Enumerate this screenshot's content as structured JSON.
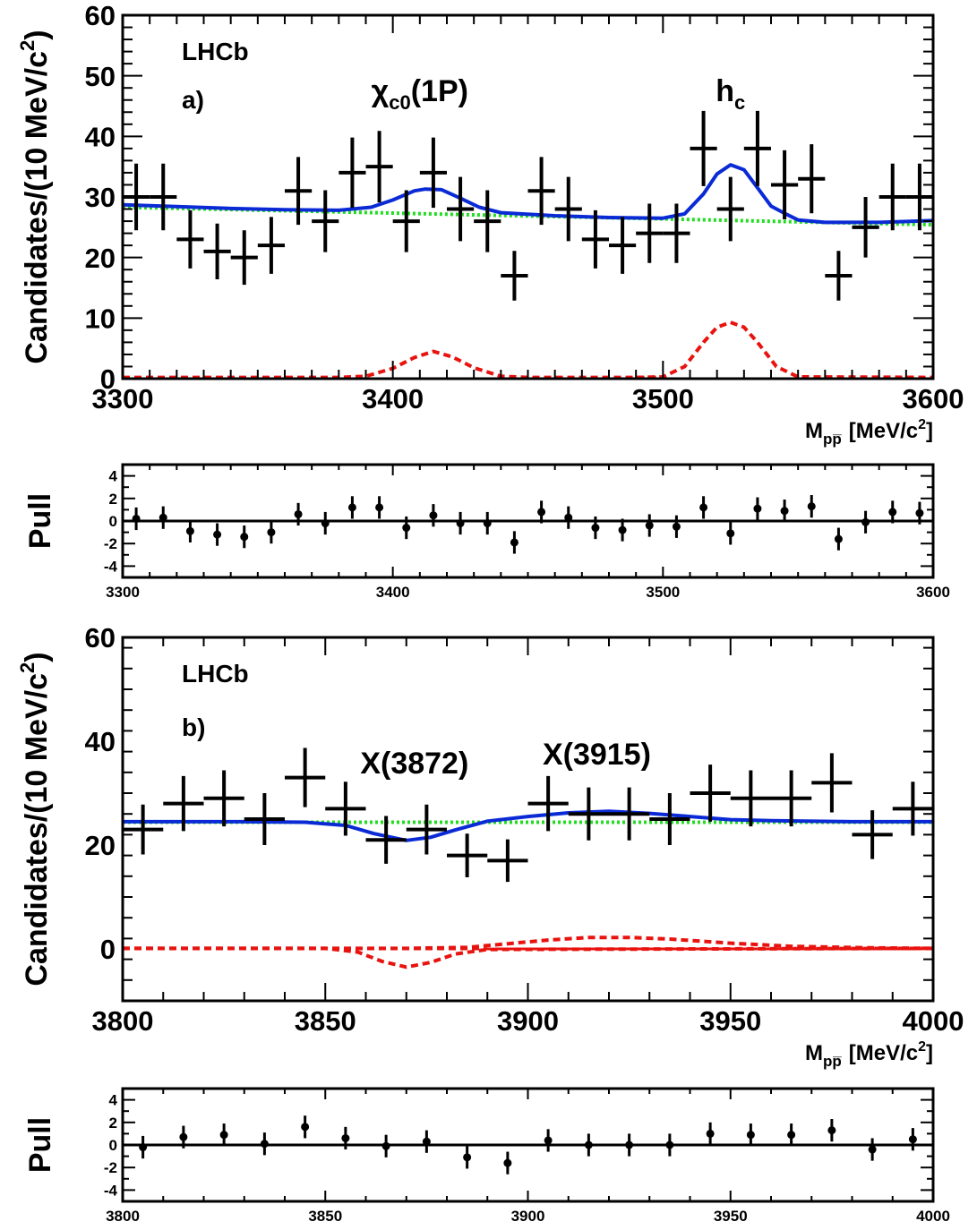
{
  "chart_data": [
    {
      "id": "a",
      "type": "scatter",
      "title": "",
      "experiment_label": "LHCb",
      "panel_label": "a)",
      "peak_labels": [
        {
          "text": "χ",
          "sub": "c0",
          "suffix": "(1P)",
          "x": 3410
        },
        {
          "text": "h",
          "sub": "c",
          "suffix": "",
          "x": 3525
        }
      ],
      "xlabel": "M",
      "xlabel_sub": "pp̅",
      "xlabel_unit": "[MeV/c",
      "xlabel_sup": "2",
      "xlabel_close": "]",
      "ylabel": "Candidates/(10 MeV/c",
      "ylabel_sup": "2",
      "ylabel_close": ")",
      "xlim": [
        3300,
        3600
      ],
      "ylim": [
        0,
        60
      ],
      "xticks": [
        3300,
        3400,
        3500,
        3600
      ],
      "yticks": [
        0,
        10,
        20,
        30,
        40,
        50,
        60
      ],
      "bin_half_width": 5,
      "points": [
        {
          "x": 3305,
          "y": 30,
          "err": 5.5
        },
        {
          "x": 3315,
          "y": 30,
          "err": 5.5
        },
        {
          "x": 3325,
          "y": 23,
          "err": 4.8
        },
        {
          "x": 3335,
          "y": 21,
          "err": 4.6
        },
        {
          "x": 3345,
          "y": 20,
          "err": 4.5
        },
        {
          "x": 3355,
          "y": 22,
          "err": 4.7
        },
        {
          "x": 3365,
          "y": 31,
          "err": 5.6
        },
        {
          "x": 3375,
          "y": 26,
          "err": 5.1
        },
        {
          "x": 3385,
          "y": 34,
          "err": 5.8
        },
        {
          "x": 3395,
          "y": 35,
          "err": 5.9
        },
        {
          "x": 3405,
          "y": 26,
          "err": 5.1
        },
        {
          "x": 3415,
          "y": 34,
          "err": 5.8
        },
        {
          "x": 3425,
          "y": 28,
          "err": 5.3
        },
        {
          "x": 3435,
          "y": 26,
          "err": 5.1
        },
        {
          "x": 3445,
          "y": 17,
          "err": 4.1
        },
        {
          "x": 3455,
          "y": 31,
          "err": 5.6
        },
        {
          "x": 3465,
          "y": 28,
          "err": 5.3
        },
        {
          "x": 3475,
          "y": 23,
          "err": 4.8
        },
        {
          "x": 3485,
          "y": 22,
          "err": 4.7
        },
        {
          "x": 3495,
          "y": 24,
          "err": 4.9
        },
        {
          "x": 3505,
          "y": 24,
          "err": 4.9
        },
        {
          "x": 3515,
          "y": 38,
          "err": 6.2
        },
        {
          "x": 3525,
          "y": 28,
          "err": 5.3
        },
        {
          "x": 3535,
          "y": 38,
          "err": 6.2
        },
        {
          "x": 3545,
          "y": 32,
          "err": 5.7
        },
        {
          "x": 3555,
          "y": 33,
          "err": 5.7
        },
        {
          "x": 3565,
          "y": 17,
          "err": 4.1
        },
        {
          "x": 3575,
          "y": 25,
          "err": 5.0
        },
        {
          "x": 3585,
          "y": 30,
          "err": 5.5
        },
        {
          "x": 3595,
          "y": 30,
          "err": 5.5
        }
      ],
      "total_fit": [
        [
          3300,
          28.7
        ],
        [
          3320,
          28.4
        ],
        [
          3340,
          28.1
        ],
        [
          3360,
          27.9
        ],
        [
          3380,
          27.8
        ],
        [
          3392,
          28.3
        ],
        [
          3400,
          29.5
        ],
        [
          3408,
          31.0
        ],
        [
          3412,
          31.3
        ],
        [
          3418,
          31.2
        ],
        [
          3425,
          29.8
        ],
        [
          3432,
          28.3
        ],
        [
          3440,
          27.4
        ],
        [
          3460,
          26.9
        ],
        [
          3480,
          26.6
        ],
        [
          3500,
          26.5
        ],
        [
          3508,
          27.2
        ],
        [
          3515,
          30.5
        ],
        [
          3520,
          33.8
        ],
        [
          3525,
          35.3
        ],
        [
          3530,
          34.5
        ],
        [
          3535,
          31.5
        ],
        [
          3540,
          28.5
        ],
        [
          3545,
          27.3
        ],
        [
          3550,
          26.2
        ],
        [
          3560,
          25.8
        ],
        [
          3580,
          25.8
        ],
        [
          3600,
          26.1
        ]
      ],
      "background_fit": [
        [
          3300,
          28.3
        ],
        [
          3600,
          25.4
        ]
      ],
      "signal_curves": [
        [
          [
            3300,
            0.2
          ],
          [
            3380,
            0.2
          ],
          [
            3390,
            0.4
          ],
          [
            3400,
            1.7
          ],
          [
            3408,
            3.5
          ],
          [
            3415,
            4.5
          ],
          [
            3422,
            3.6
          ],
          [
            3430,
            1.8
          ],
          [
            3440,
            0.4
          ],
          [
            3450,
            0.2
          ],
          [
            3500,
            0.2
          ]
        ],
        [
          [
            3490,
            0.2
          ],
          [
            3500,
            0.3
          ],
          [
            3508,
            2.0
          ],
          [
            3515,
            6.0
          ],
          [
            3520,
            8.5
          ],
          [
            3525,
            9.3
          ],
          [
            3530,
            8.5
          ],
          [
            3535,
            6.0
          ],
          [
            3542,
            2.0
          ],
          [
            3550,
            0.3
          ],
          [
            3600,
            0.2
          ]
        ]
      ],
      "pull": {
        "ylabel": "Pull",
        "ylim": [
          -5,
          5
        ],
        "yticks": [
          -4,
          -2,
          0,
          2,
          4
        ],
        "values": [
          0.2,
          0.3,
          -0.9,
          -1.2,
          -1.4,
          -1.0,
          0.6,
          -0.2,
          1.2,
          1.2,
          -0.6,
          0.5,
          -0.2,
          -0.2,
          -1.9,
          0.8,
          0.3,
          -0.6,
          -0.8,
          -0.4,
          -0.5,
          1.2,
          -1.1,
          1.1,
          0.9,
          1.3,
          -1.6,
          -0.1,
          0.8,
          0.7
        ]
      }
    },
    {
      "id": "b",
      "type": "scatter",
      "title": "",
      "experiment_label": "LHCb",
      "panel_label": "b)",
      "peak_labels": [
        {
          "text": "X(3872)",
          "sub": "",
          "suffix": "",
          "x": 3872
        },
        {
          "text": "X(3915)",
          "sub": "",
          "suffix": "",
          "x": 3917
        }
      ],
      "xlabel": "M",
      "xlabel_sub": "pp̅",
      "xlabel_unit": "[MeV/c",
      "xlabel_sup": "2",
      "xlabel_close": "]",
      "ylabel": "Candidates/(10 MeV/c",
      "ylabel_sup": "2",
      "ylabel_close": ")",
      "xlim": [
        3800,
        4000
      ],
      "ylim": [
        -10,
        60
      ],
      "xticks": [
        3800,
        3850,
        3900,
        3950,
        4000
      ],
      "yticks": [
        0,
        20,
        40,
        60
      ],
      "bin_half_width": 5,
      "points": [
        {
          "x": 3805,
          "y": 23,
          "err": 4.8
        },
        {
          "x": 3815,
          "y": 28,
          "err": 5.3
        },
        {
          "x": 3825,
          "y": 29,
          "err": 5.4
        },
        {
          "x": 3835,
          "y": 25,
          "err": 5.0
        },
        {
          "x": 3845,
          "y": 33,
          "err": 5.7
        },
        {
          "x": 3855,
          "y": 27,
          "err": 5.2
        },
        {
          "x": 3865,
          "y": 21,
          "err": 4.6
        },
        {
          "x": 3875,
          "y": 23,
          "err": 4.8
        },
        {
          "x": 3885,
          "y": 18,
          "err": 4.2
        },
        {
          "x": 3895,
          "y": 17,
          "err": 4.1
        },
        {
          "x": 3905,
          "y": 28,
          "err": 5.3
        },
        {
          "x": 3915,
          "y": 26,
          "err": 5.1
        },
        {
          "x": 3925,
          "y": 26,
          "err": 5.1
        },
        {
          "x": 3935,
          "y": 25,
          "err": 5.0
        },
        {
          "x": 3945,
          "y": 30,
          "err": 5.5
        },
        {
          "x": 3955,
          "y": 29,
          "err": 5.4
        },
        {
          "x": 3965,
          "y": 29,
          "err": 5.4
        },
        {
          "x": 3975,
          "y": 32,
          "err": 5.7
        },
        {
          "x": 3985,
          "y": 22,
          "err": 4.7
        },
        {
          "x": 3995,
          "y": 27,
          "err": 5.2
        }
      ],
      "total_fit": [
        [
          3800,
          24.5
        ],
        [
          3830,
          24.5
        ],
        [
          3845,
          24.4
        ],
        [
          3855,
          23.8
        ],
        [
          3862,
          22.2
        ],
        [
          3870,
          20.9
        ],
        [
          3876,
          21.5
        ],
        [
          3882,
          22.9
        ],
        [
          3890,
          24.6
        ],
        [
          3900,
          25.5
        ],
        [
          3910,
          26.2
        ],
        [
          3920,
          26.5
        ],
        [
          3930,
          26.1
        ],
        [
          3940,
          25.5
        ],
        [
          3950,
          24.9
        ],
        [
          3960,
          24.7
        ],
        [
          3980,
          24.5
        ],
        [
          4000,
          24.5
        ]
      ],
      "background_fit": [
        [
          3800,
          24.4
        ],
        [
          4000,
          24.4
        ]
      ],
      "signal_curves": [
        [
          [
            3800,
            0.1
          ],
          [
            3850,
            0.1
          ],
          [
            3858,
            -0.6
          ],
          [
            3864,
            -2.4
          ],
          [
            3870,
            -3.5
          ],
          [
            3876,
            -2.6
          ],
          [
            3882,
            -1.0
          ],
          [
            3890,
            -0.1
          ],
          [
            4000,
            0.1
          ]
        ],
        [
          [
            3800,
            0.1
          ],
          [
            3870,
            0.1
          ],
          [
            3885,
            0.3
          ],
          [
            3895,
            1.0
          ],
          [
            3905,
            1.7
          ],
          [
            3915,
            2.2
          ],
          [
            3925,
            2.2
          ],
          [
            3935,
            1.9
          ],
          [
            3950,
            1.1
          ],
          [
            3965,
            0.5
          ],
          [
            3985,
            0.2
          ],
          [
            4000,
            0.1
          ]
        ]
      ],
      "pull": {
        "ylabel": "Pull",
        "ylim": [
          -5,
          5
        ],
        "yticks": [
          -4,
          -2,
          0,
          2,
          4
        ],
        "values": [
          -0.2,
          0.7,
          0.9,
          0.1,
          1.6,
          0.6,
          -0.1,
          0.3,
          -1.1,
          -1.6,
          0.4,
          0.0,
          0.0,
          0.0,
          1.0,
          0.9,
          0.9,
          1.3,
          -0.4,
          0.5
        ]
      }
    }
  ],
  "colors": {
    "data": "#000000",
    "total_fit": "#0a2ad6",
    "background_fit": "#22dd22",
    "signal": "#e8130f",
    "axes": "#000000"
  }
}
